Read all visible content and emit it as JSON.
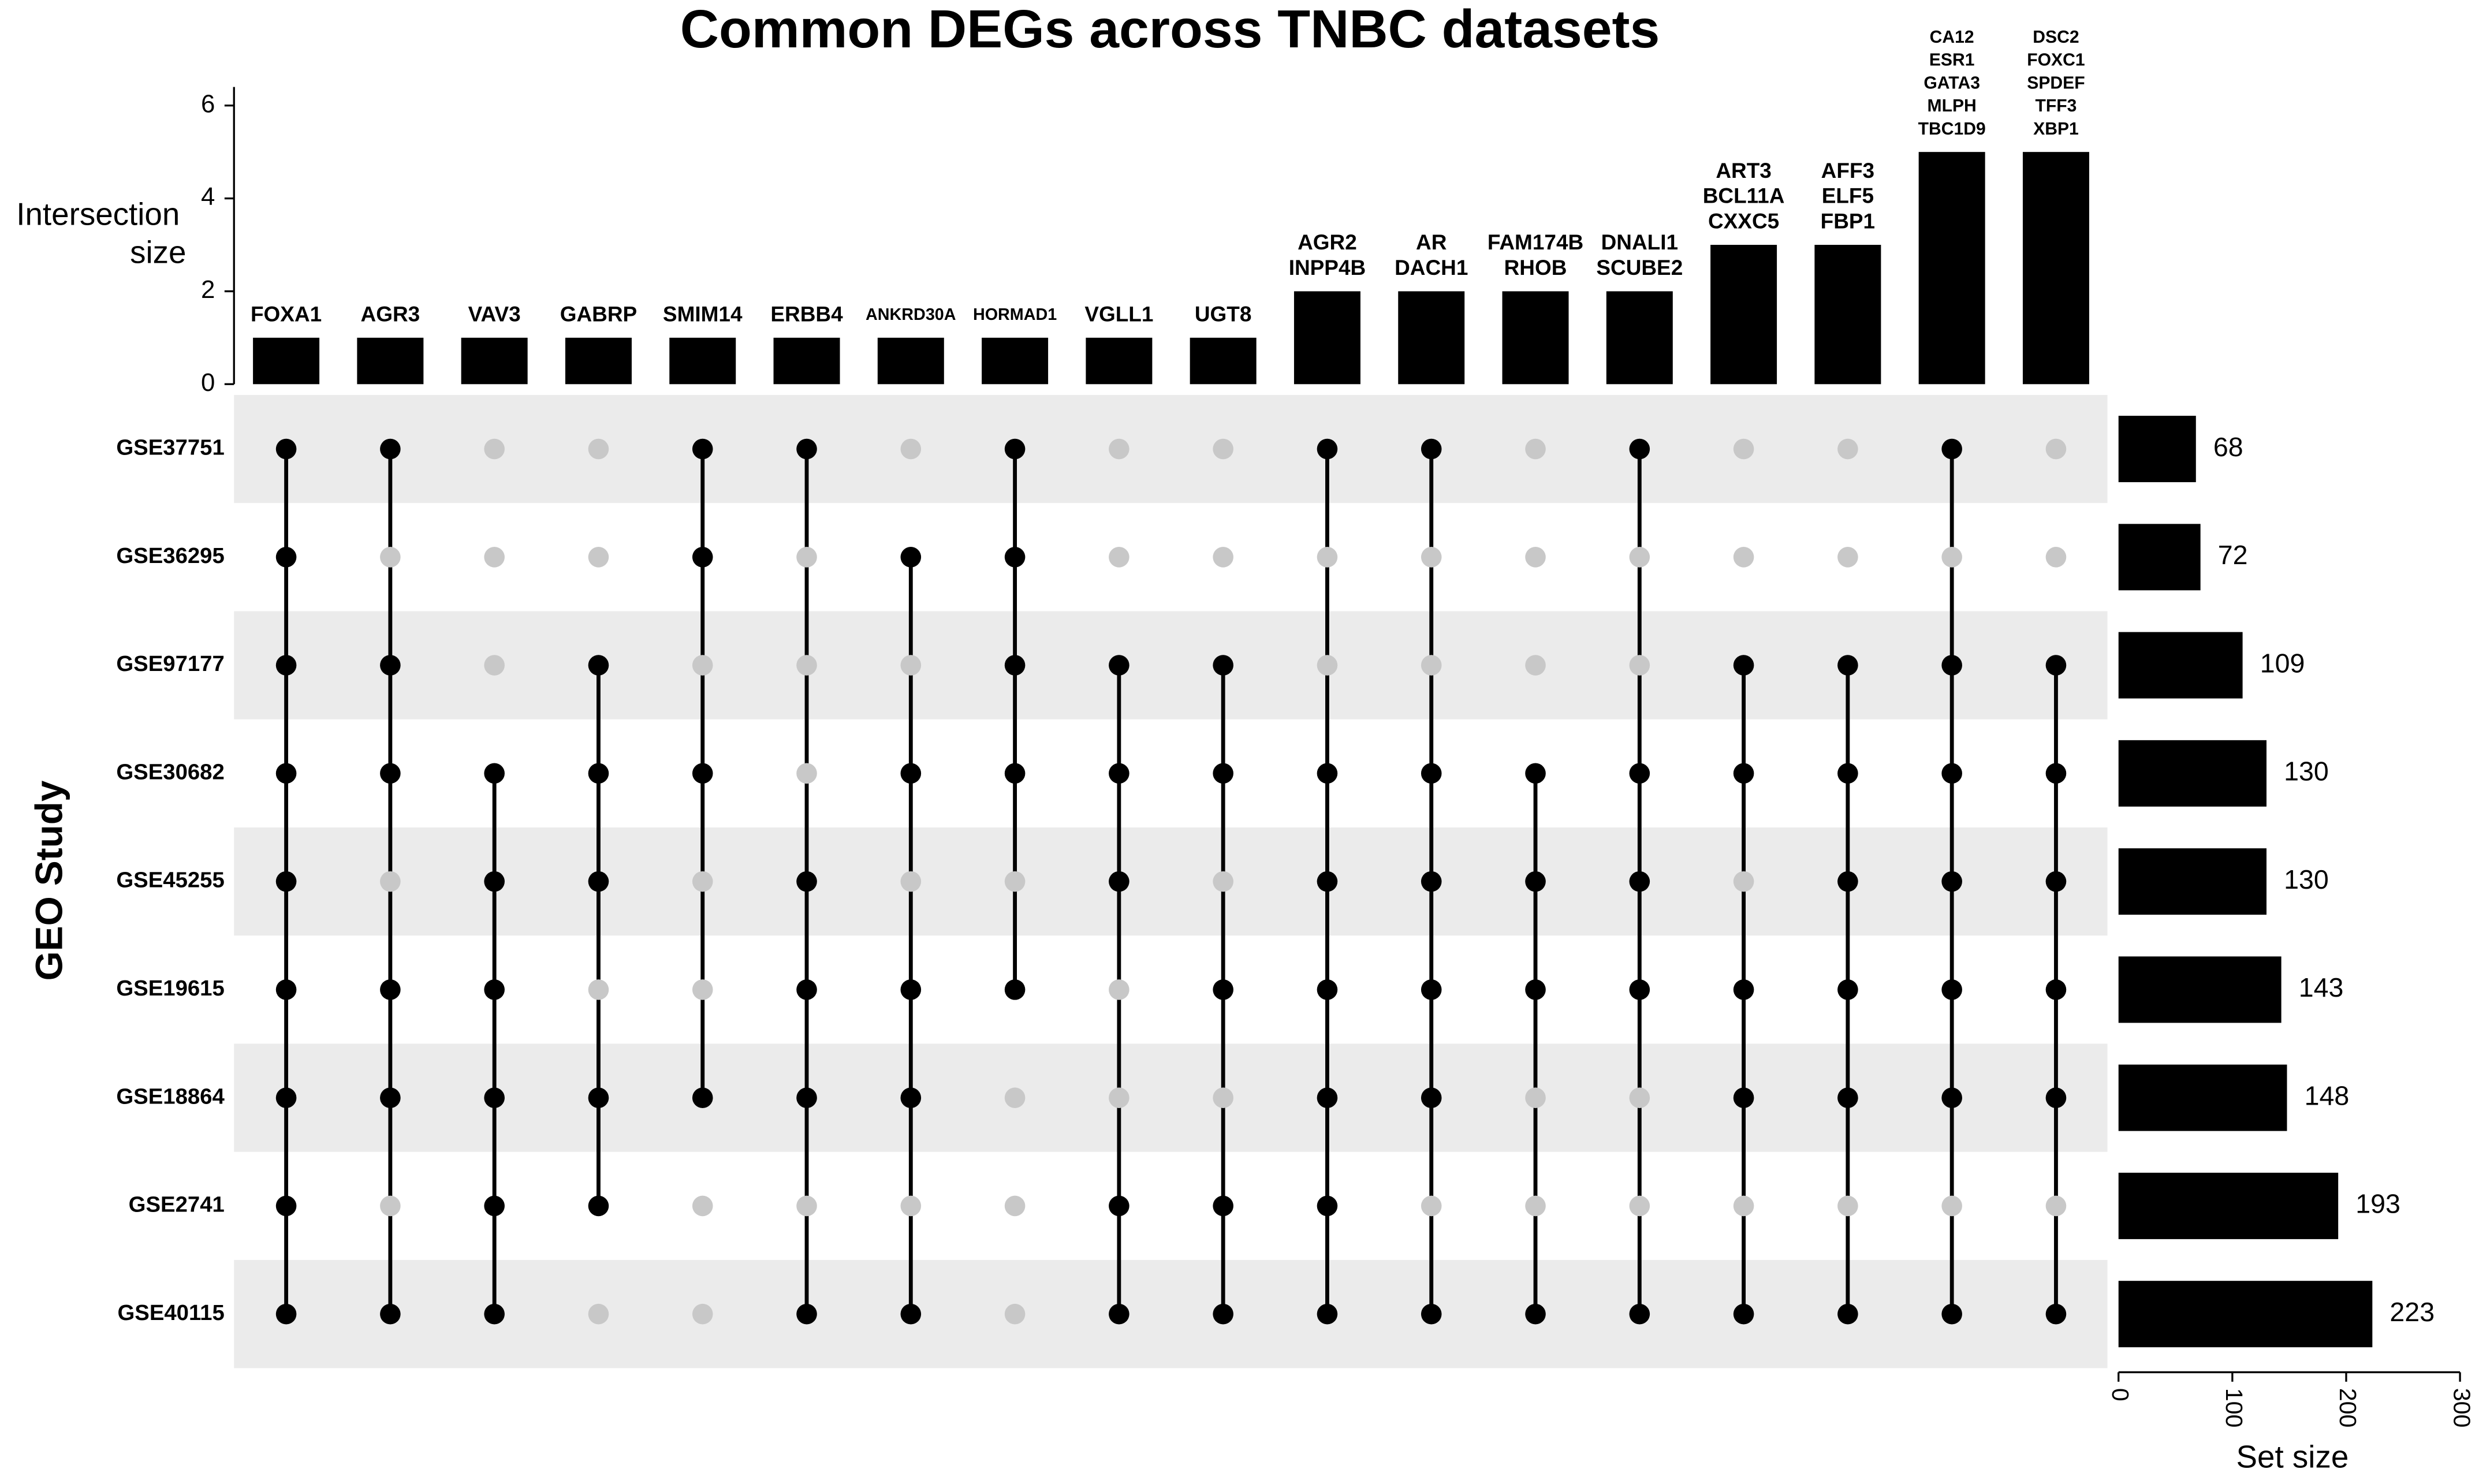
{
  "chart_data": {
    "type": "upset",
    "title": "Common DEGs across TNBC datasets",
    "y_label": [
      "Intersection",
      "size"
    ],
    "set_axis_label": "GEO Study",
    "set_size_label": "Set size",
    "sets": [
      "GSE37751",
      "GSE36295",
      "GSE97177",
      "GSE30682",
      "GSE45255",
      "GSE19615",
      "GSE18864",
      "GSE2741",
      "GSE40115"
    ],
    "set_sizes": [
      68,
      72,
      109,
      130,
      130,
      143,
      148,
      193,
      223
    ],
    "intersection_sizes": [
      1,
      1,
      1,
      1,
      1,
      1,
      1,
      1,
      1,
      1,
      2,
      2,
      2,
      2,
      3,
      3,
      5,
      5
    ],
    "genes": [
      [
        "FOXA1"
      ],
      [
        "AGR3"
      ],
      [
        "VAV3"
      ],
      [
        "GABRP"
      ],
      [
        "SMIM14"
      ],
      [
        "ERBB4"
      ],
      [
        "ANKRD30A"
      ],
      [
        "HORMAD1"
      ],
      [
        "VGLL1"
      ],
      [
        "UGT8"
      ],
      [
        "AGR2",
        "INPP4B"
      ],
      [
        "AR",
        "DACH1"
      ],
      [
        "FAM174B",
        "RHOB"
      ],
      [
        "DNALI1",
        "SCUBE2"
      ],
      [
        "ART3",
        "BCL11A",
        "CXXC5"
      ],
      [
        "AFF3",
        "ELF5",
        "FBP1"
      ],
      [
        "CA12",
        "ESR1",
        "GATA3",
        "MLPH",
        "TBC1D9"
      ],
      [
        "DSC2",
        "FOXC1",
        "SPDEF",
        "TFF3",
        "XBP1"
      ]
    ],
    "membership": [
      [
        1,
        1,
        1,
        1,
        1,
        1,
        1,
        1,
        1
      ],
      [
        1,
        0,
        1,
        1,
        0,
        1,
        1,
        0,
        1
      ],
      [
        0,
        0,
        0,
        1,
        1,
        1,
        1,
        1,
        1
      ],
      [
        0,
        0,
        1,
        1,
        1,
        0,
        1,
        1,
        0
      ],
      [
        1,
        1,
        0,
        1,
        0,
        0,
        1,
        0,
        0
      ],
      [
        1,
        0,
        0,
        0,
        1,
        1,
        1,
        0,
        1
      ],
      [
        0,
        1,
        0,
        1,
        0,
        1,
        1,
        0,
        1
      ],
      [
        1,
        1,
        1,
        1,
        0,
        1,
        0,
        0,
        0
      ],
      [
        0,
        0,
        1,
        1,
        1,
        0,
        0,
        1,
        1
      ],
      [
        0,
        0,
        1,
        1,
        0,
        1,
        0,
        1,
        1
      ],
      [
        1,
        0,
        0,
        1,
        1,
        1,
        1,
        1,
        1
      ],
      [
        1,
        0,
        0,
        1,
        1,
        1,
        1,
        0,
        1
      ],
      [
        0,
        0,
        0,
        1,
        1,
        1,
        0,
        0,
        1
      ],
      [
        1,
        0,
        0,
        1,
        1,
        1,
        0,
        0,
        1
      ],
      [
        0,
        0,
        1,
        1,
        0,
        1,
        1,
        0,
        1
      ],
      [
        0,
        0,
        1,
        1,
        1,
        1,
        1,
        0,
        1
      ],
      [
        1,
        0,
        1,
        1,
        1,
        1,
        1,
        0,
        1
      ],
      [
        0,
        0,
        1,
        1,
        1,
        1,
        1,
        0,
        1
      ]
    ],
    "ylim": [
      0,
      6.4
    ],
    "yticks": [
      0,
      2,
      4,
      6
    ],
    "set_size_xlim": [
      0,
      300
    ],
    "set_size_xticks": [
      0,
      100,
      200,
      300
    ],
    "bar_color": "#000000",
    "dot_color": "#000000",
    "inactive_dot_color": "#c8c8c8",
    "stripe_color": "#ebebeb"
  }
}
